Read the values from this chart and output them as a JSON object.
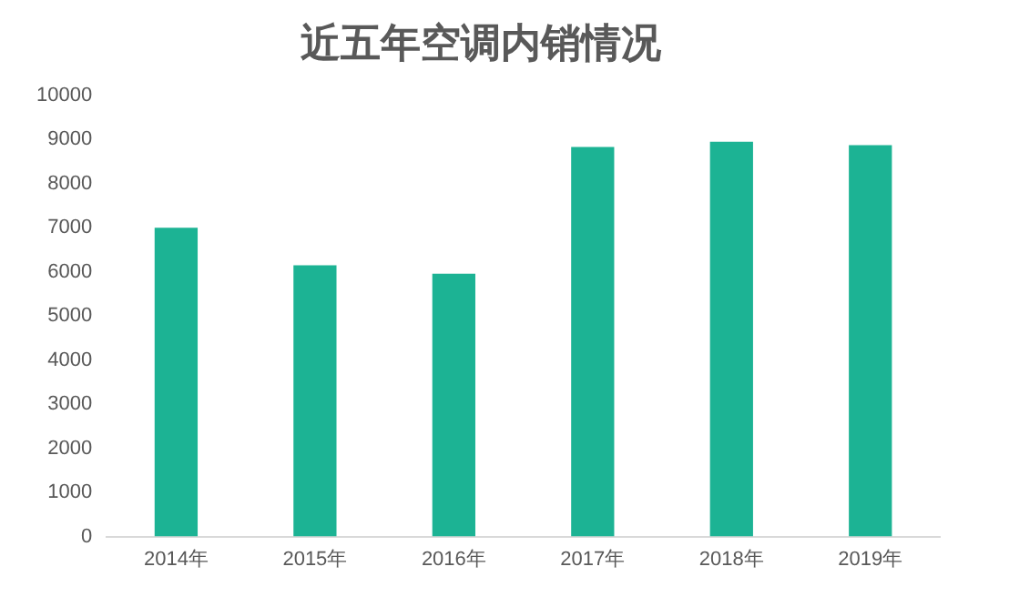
{
  "chart_data": {
    "type": "bar",
    "title": "近五年空调内销情况",
    "categories": [
      "2014年",
      "2015年",
      "2016年",
      "2017年",
      "2018年",
      "2019年"
    ],
    "values": [
      7000,
      6150,
      5960,
      8830,
      8950,
      8870
    ],
    "color": "#1cb394",
    "ylim": [
      0,
      10000
    ],
    "yticks": [
      0,
      1000,
      2000,
      3000,
      4000,
      5000,
      6000,
      7000,
      8000,
      9000,
      10000
    ],
    "grid": false
  }
}
